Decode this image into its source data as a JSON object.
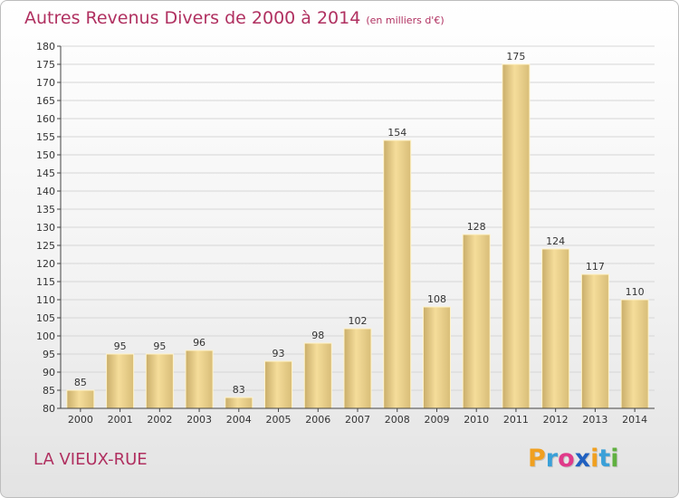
{
  "chart_data": {
    "type": "bar",
    "title": "Autres Revenus Divers de 2000 à 2014",
    "subtitle": "(en milliers d'€)",
    "categories": [
      "2000",
      "2001",
      "2002",
      "2003",
      "2004",
      "2005",
      "2006",
      "2007",
      "2008",
      "2009",
      "2010",
      "2011",
      "2012",
      "2013",
      "2014"
    ],
    "values": [
      85,
      95,
      95,
      96,
      83,
      93,
      98,
      102,
      154,
      108,
      128,
      175,
      124,
      117,
      110
    ],
    "ylim": [
      80,
      180
    ],
    "ytick_step": 5,
    "grid": true,
    "xlabel": "",
    "ylabel": ""
  },
  "location": "LA VIEUX-RUE",
  "logo": {
    "letters": [
      "P",
      "r",
      "o",
      "x",
      "i",
      "t",
      "i"
    ],
    "colors": [
      "#f0a020",
      "#3aa0d8",
      "#e03a8a",
      "#2060c0",
      "#f0a020",
      "#3aa0d8",
      "#60b040"
    ]
  },
  "colors": {
    "accent": "#b03060",
    "bar_light": "#f5dd9a",
    "bar_dark": "#c9ad6a"
  }
}
